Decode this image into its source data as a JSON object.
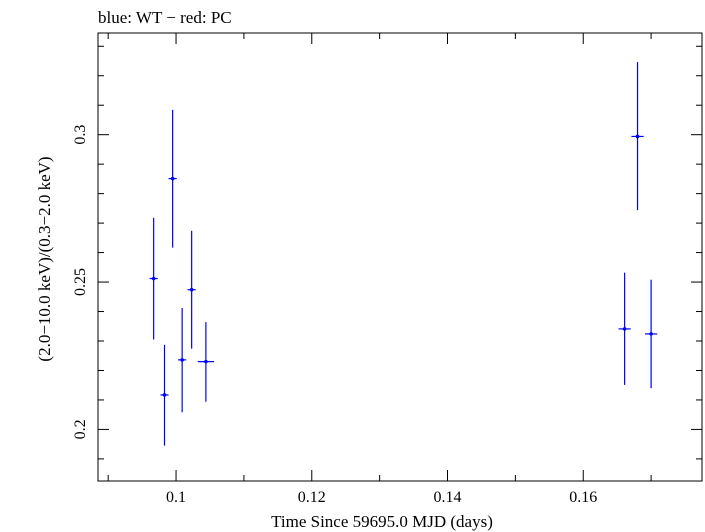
{
  "chart_data": {
    "type": "scatter",
    "title": "blue: WT − red: PC",
    "xlabel": "Time Since 59695.0 MJD (days)",
    "ylabel": "(2.0−10.0 keV)/(0.3−2.0 keV)",
    "xlim": [
      0.0885,
      0.1775
    ],
    "ylim": [
      0.1825,
      0.3345
    ],
    "x_ticks": [
      0.1,
      0.12,
      0.14,
      0.16
    ],
    "x_tick_labels": [
      "0.1",
      "0.12",
      "0.14",
      "0.16"
    ],
    "y_ticks": [
      0.2,
      0.25,
      0.3
    ],
    "y_tick_labels": [
      "0.2",
      "0.25",
      "0.3"
    ],
    "grid": false,
    "series": [
      {
        "color": "#0000ff",
        "points": [
          {
            "x": 0.0967,
            "y": 0.2512,
            "xerr": 0.0006,
            "ylo": 0.2305,
            "yhi": 0.2718
          },
          {
            "x": 0.0983,
            "y": 0.2117,
            "xerr": 0.0006,
            "ylo": 0.1945,
            "yhi": 0.2287
          },
          {
            "x": 0.0995,
            "y": 0.2851,
            "xerr": 0.0006,
            "ylo": 0.2617,
            "yhi": 0.3084
          },
          {
            "x": 0.1009,
            "y": 0.2236,
            "xerr": 0.0006,
            "ylo": 0.2058,
            "yhi": 0.2412
          },
          {
            "x": 0.1023,
            "y": 0.2474,
            "xerr": 0.0006,
            "ylo": 0.2274,
            "yhi": 0.2674
          },
          {
            "x": 0.1044,
            "y": 0.223,
            "xerr": 0.0012,
            "ylo": 0.2094,
            "yhi": 0.2364
          },
          {
            "x": 0.1661,
            "y": 0.2341,
            "xerr": 0.0009,
            "ylo": 0.2151,
            "yhi": 0.2532
          },
          {
            "x": 0.168,
            "y": 0.2994,
            "xerr": 0.0009,
            "ylo": 0.2744,
            "yhi": 0.3246
          },
          {
            "x": 0.17,
            "y": 0.2324,
            "xerr": 0.0009,
            "ylo": 0.214,
            "yhi": 0.2508
          }
        ]
      }
    ]
  }
}
